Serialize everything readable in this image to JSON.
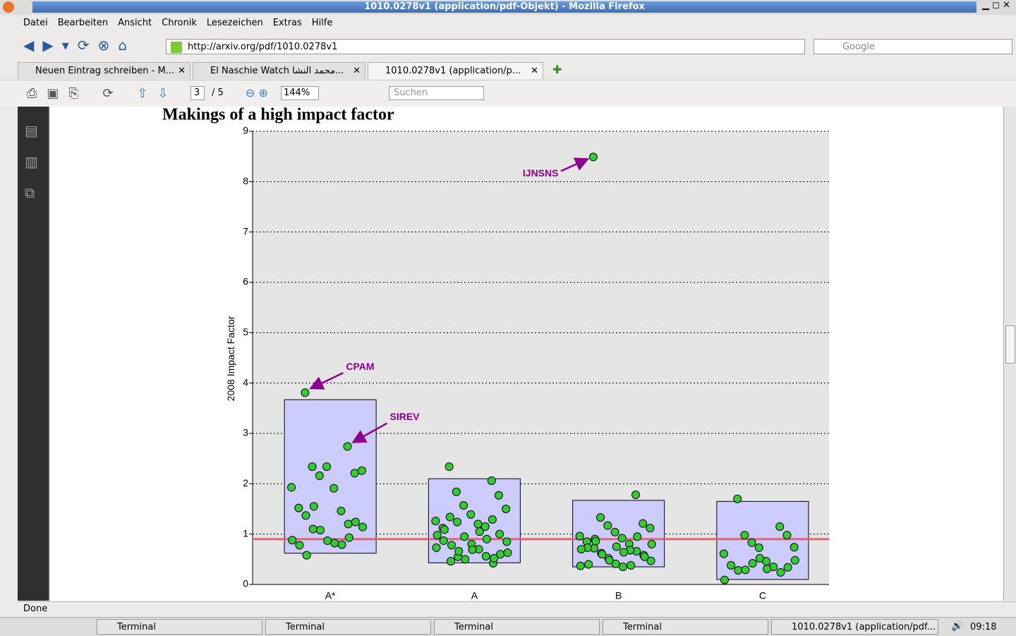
{
  "window": {
    "title": "1010.0278v1 (application/pdf-Objekt) - Mozilla Firefox"
  },
  "menu": [
    "Datei",
    "Bearbeiten",
    "Ansicht",
    "Chronik",
    "Lesezeichen",
    "Extras",
    "Hilfe"
  ],
  "url": "http://arxiv.org/pdf/1010.0278v1",
  "search_placeholder": "Google",
  "tabs": [
    "Neuen Eintrag schreiben - M...",
    "El Naschie Watch محمد النشا...",
    "1010.0278v1 (application/p..."
  ],
  "pdf_toolbar": {
    "page": "3",
    "pages": "/ 5",
    "zoom": "144%",
    "search_placeholder": "Suchen"
  },
  "chart_data": {
    "type": "scatter",
    "title": "Makings of a high impact factor",
    "y_label": "2008 Impact Factor",
    "categories": [
      "A*",
      "A",
      "B",
      "C"
    ],
    "values": [
      [
        3.81,
        2.74,
        2.34,
        2.21,
        2.16,
        2.26,
        2.34,
        1.93,
        1.91,
        1.52,
        1.46,
        1.37,
        1.2,
        1.1,
        1.24,
        1.08,
        1.14,
        0.87,
        0.88,
        0.82,
        0.78,
        0.79,
        0.58,
        0.93,
        1.55
      ],
      [
        2.34,
        2.06,
        1.84,
        1.77,
        1.57,
        1.5,
        1.39,
        1.26,
        1.2,
        1.12,
        1.15,
        1.34,
        1.29,
        1.24,
        1.0,
        0.95,
        0.85,
        0.8,
        0.73,
        0.7,
        0.87,
        0.56,
        0.46,
        0.42,
        0.55,
        0.6,
        0.5,
        0.63,
        0.69,
        0.98,
        1.05,
        1.09,
        0.9,
        0.78,
        0.52,
        0.66
      ],
      [
        8.49,
        1.78,
        1.33,
        1.21,
        1.17,
        1.12,
        1.04,
        0.96,
        0.92,
        0.85,
        0.8,
        0.72,
        0.66,
        0.62,
        0.58,
        0.52,
        0.47,
        0.41,
        0.37,
        0.35,
        0.73,
        0.68,
        0.9,
        0.95,
        0.6,
        0.55,
        0.48,
        0.8,
        0.75,
        0.7,
        0.64,
        0.4,
        0.38,
        0.86
      ],
      [
        1.7,
        1.15,
        0.98,
        0.98,
        0.83,
        0.74,
        0.73,
        0.61,
        0.46,
        0.38,
        0.35,
        0.28,
        0.24,
        0.29,
        0.34,
        0.42,
        0.48,
        0.52,
        0.09,
        0.31
      ]
    ],
    "boxes": [
      {
        "low": 0.62,
        "high": 3.67
      },
      {
        "low": 0.43,
        "high": 2.1
      },
      {
        "low": 0.35,
        "high": 1.67
      },
      {
        "low": 0.1,
        "high": 1.65
      }
    ],
    "reference_line": 0.9,
    "annotations": [
      "CPAM",
      "SIREV",
      "IJNSNS"
    ],
    "ylim": [
      0,
      9
    ],
    "yticks": [
      0,
      1,
      2,
      3,
      4,
      5,
      6,
      7,
      8,
      9
    ],
    "grid": true,
    "color": "#33cc33",
    "box_color": "#ccccff",
    "line_color": "#d66a78",
    "annotation_color": "#8b008b"
  },
  "status": "Done",
  "taskbar": {
    "items": [
      "Terminal",
      "Terminal",
      "Terminal",
      "Terminal",
      "1010.0278v1 (application/pdf..."
    ],
    "clock": "09:18"
  }
}
